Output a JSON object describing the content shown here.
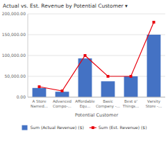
{
  "chart_data": {
    "type": "bar",
    "title": "Actual vs. Est. Revenue by Potential Customer ▾",
    "xlabel": "Potential Customer",
    "categories": [
      "A Store\nNamed...",
      "Advanced\nCompo-...",
      "Affordable\nEqu...",
      "Basic\nCompany -...",
      "Best o'\nThings...",
      "Varsity\nStore -..."
    ],
    "series": [
      {
        "name": "Sum (Actual Revenue) ($)",
        "type": "bar",
        "color": "#4472c4",
        "values": [
          22000,
          13000,
          93000,
          38000,
          50000,
          150000
        ]
      },
      {
        "name": "Sum (Est. Revenue) ($)",
        "type": "line",
        "color": "#e8000d",
        "marker": "square",
        "values": [
          25000,
          15000,
          100000,
          50000,
          50000,
          180000
        ]
      }
    ],
    "ylim": [
      0,
      200000
    ],
    "yticks": [
      {
        "value": 0,
        "label": "0.00"
      },
      {
        "value": 50000,
        "label": "50,000.00"
      },
      {
        "value": 100000,
        "label": "100,000.00"
      },
      {
        "value": 150000,
        "label": "150,000.00"
      },
      {
        "value": 200000,
        "label": "200,000.00"
      }
    ],
    "grid": true,
    "legend": "bottom"
  }
}
